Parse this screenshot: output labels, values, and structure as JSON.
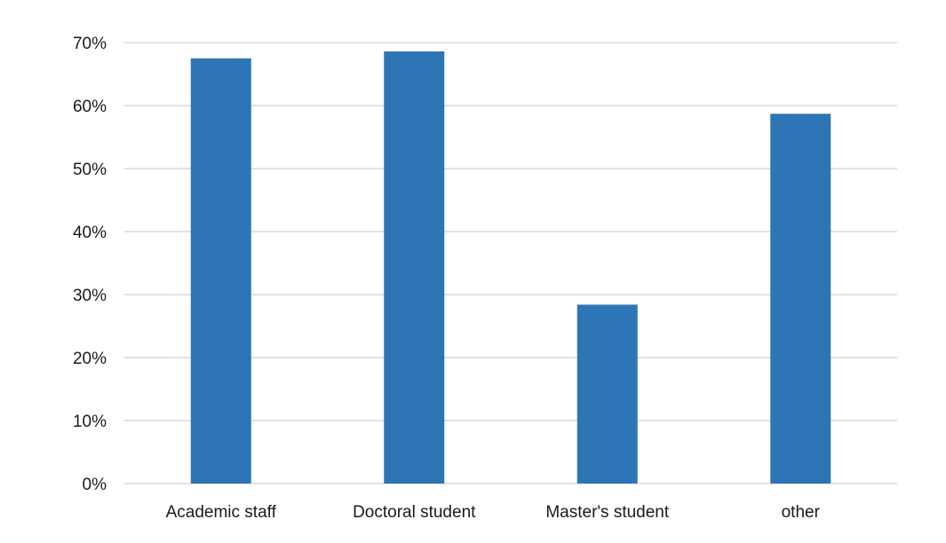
{
  "chart_data": {
    "type": "bar",
    "title": "",
    "xlabel": "",
    "ylabel": "",
    "categories": [
      "Academic staff",
      "Doctoral student",
      "Master's student",
      "other"
    ],
    "values": [
      0.675,
      0.686,
      0.284,
      0.587
    ],
    "ylim": [
      0,
      0.7
    ],
    "yticks": [
      0,
      0.1,
      0.2,
      0.3,
      0.4,
      0.5,
      0.6,
      0.7
    ],
    "ytick_labels": [
      "0%",
      "10%",
      "20%",
      "30%",
      "40%",
      "50%",
      "60%",
      "70%"
    ],
    "grid": true,
    "legend": "none",
    "bar_color": "#2E75B6",
    "grid_color": "#D9D9D9"
  }
}
